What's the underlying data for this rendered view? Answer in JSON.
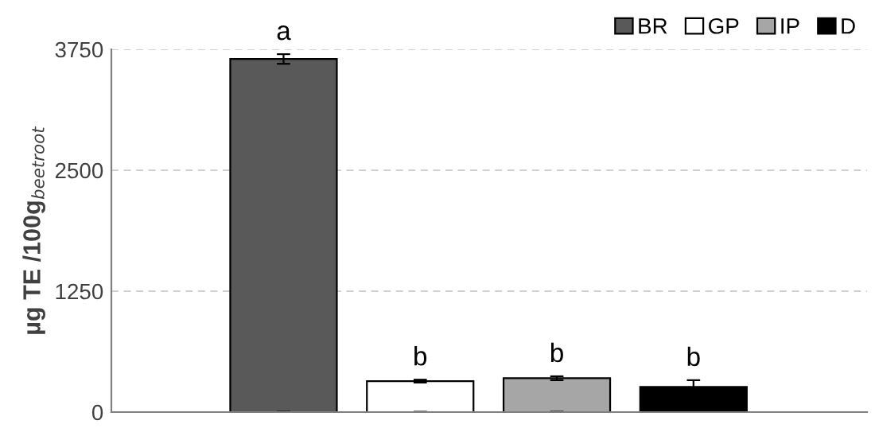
{
  "chart_data": {
    "type": "bar",
    "ylabel": "µg TE /100g$_{beetroot}$",
    "categories": [
      null,
      null,
      null,
      null
    ],
    "series": [
      {
        "name": "BR",
        "color": "#595959",
        "values": [
          3650,
          null,
          null,
          null
        ],
        "errors": [
          50,
          null,
          null,
          null
        ]
      },
      {
        "name": "GP",
        "color": "#ffffff",
        "values": [
          null,
          320,
          null,
          null
        ],
        "errors": [
          null,
          15,
          null,
          null
        ]
      },
      {
        "name": "IP",
        "color": "#a6a6a6",
        "values": [
          null,
          null,
          350,
          null
        ],
        "errors": [
          null,
          null,
          20,
          null
        ]
      },
      {
        "name": "D",
        "color": "#000000",
        "values": [
          null,
          null,
          null,
          260
        ],
        "errors": [
          null,
          null,
          null,
          70
        ]
      }
    ],
    "ylim": [
      0,
      3750
    ],
    "yticks": [
      0,
      1250,
      2500,
      3750
    ],
    "grid": "y",
    "legend": "top right",
    "annotations": [
      "a",
      "b",
      "b",
      "b"
    ]
  }
}
